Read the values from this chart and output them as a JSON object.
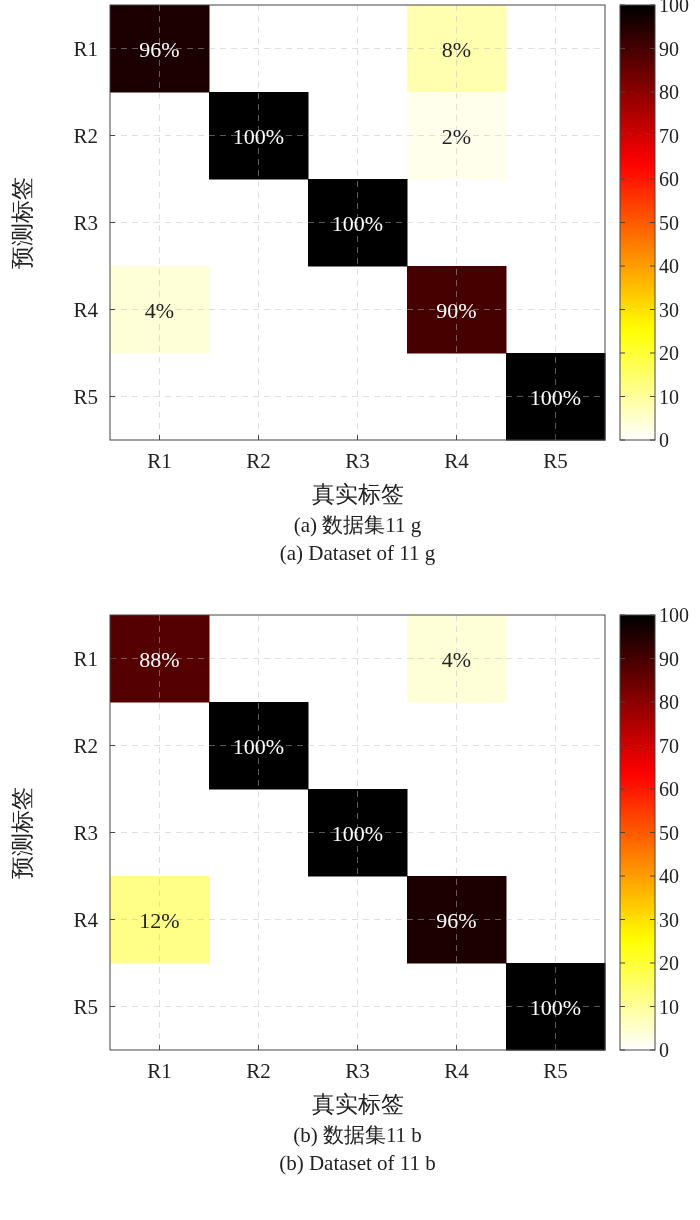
{
  "chart_data": [
    {
      "type": "heatmap",
      "xlabel": "真实标签",
      "ylabel": "预测标签",
      "annotations": [
        "(a) 数据集11 g",
        "(a) Dataset of 11 g"
      ],
      "categories": [
        "R1",
        "R2",
        "R3",
        "R4",
        "R5"
      ],
      "y_categories": [
        "R1",
        "R2",
        "R3",
        "R4",
        "R5"
      ],
      "cells": [
        [
          96,
          null,
          null,
          8,
          null
        ],
        [
          null,
          100,
          null,
          2,
          null
        ],
        [
          null,
          null,
          100,
          null,
          null
        ],
        [
          4,
          null,
          null,
          90,
          null
        ],
        [
          null,
          null,
          null,
          null,
          100
        ]
      ],
      "cell_labels": [
        [
          "96%",
          null,
          null,
          "8%",
          null
        ],
        [
          null,
          "100%",
          null,
          "2%",
          null
        ],
        [
          null,
          null,
          "100%",
          null,
          null
        ],
        [
          "4%",
          null,
          null,
          "90%",
          null
        ],
        [
          null,
          null,
          null,
          null,
          "100%"
        ]
      ],
      "clim": [
        0,
        100
      ],
      "cticks": [
        0,
        10,
        20,
        30,
        40,
        50,
        60,
        70,
        80,
        90,
        100
      ],
      "grid": true
    },
    {
      "type": "heatmap",
      "xlabel": "真实标签",
      "ylabel": "预测标签",
      "annotations": [
        "(b) 数据集11 b",
        "(b) Dataset of 11 b"
      ],
      "categories": [
        "R1",
        "R2",
        "R3",
        "R4",
        "R5"
      ],
      "y_categories": [
        "R1",
        "R2",
        "R3",
        "R4",
        "R5"
      ],
      "cells": [
        [
          88,
          null,
          null,
          4,
          null
        ],
        [
          null,
          100,
          null,
          null,
          null
        ],
        [
          null,
          null,
          100,
          null,
          null
        ],
        [
          12,
          null,
          null,
          96,
          null
        ],
        [
          null,
          null,
          null,
          null,
          100
        ]
      ],
      "cell_labels": [
        [
          "88%",
          null,
          null,
          "4%",
          null
        ],
        [
          null,
          "100%",
          null,
          null,
          null
        ],
        [
          null,
          null,
          "100%",
          null,
          null
        ],
        [
          "12%",
          null,
          null,
          "96%",
          null
        ],
        [
          null,
          null,
          null,
          null,
          "100%"
        ]
      ],
      "clim": [
        0,
        100
      ],
      "cticks": [
        0,
        10,
        20,
        30,
        40,
        50,
        60,
        70,
        80,
        90,
        100
      ],
      "grid": true
    }
  ]
}
